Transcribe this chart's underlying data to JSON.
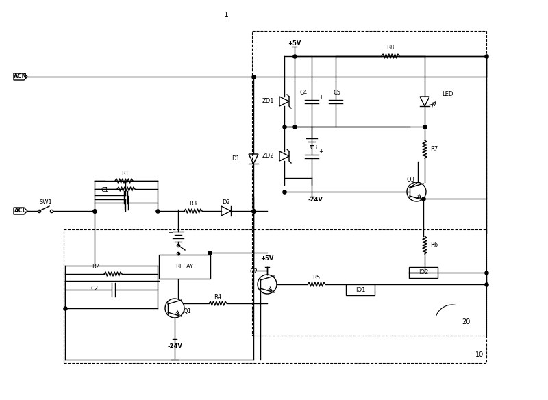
{
  "title": "1",
  "bg_color": "#ffffff",
  "lc": "#000000",
  "labels": {
    "ACN": "ACN",
    "ACL": "ACL",
    "SW1": "SW1",
    "R1": "R1",
    "C1": "C1",
    "R2": "R2",
    "C2": "C2",
    "R3": "R3",
    "D1": "D1",
    "D2": "D2",
    "ZD1": "ZD1",
    "ZD2": "ZD2",
    "C3": "C3",
    "C4": "C4",
    "C5": "C5",
    "R8": "R8",
    "LED": "LED",
    "R7": "R7",
    "Q3": "Q3",
    "R6": "R6",
    "IO2": "IO2",
    "RELAY": "RELAY",
    "Q1": "Q1",
    "Q2": "Q2",
    "R4": "R4",
    "R5": "R5",
    "IO1": "IO1",
    "plus5V_1": "+5V",
    "plus5V_2": "+5V",
    "minus24V_1": "-24V",
    "minus24V_2": "-24V",
    "num_1": "1",
    "num_10": "10",
    "num_20": "20"
  }
}
